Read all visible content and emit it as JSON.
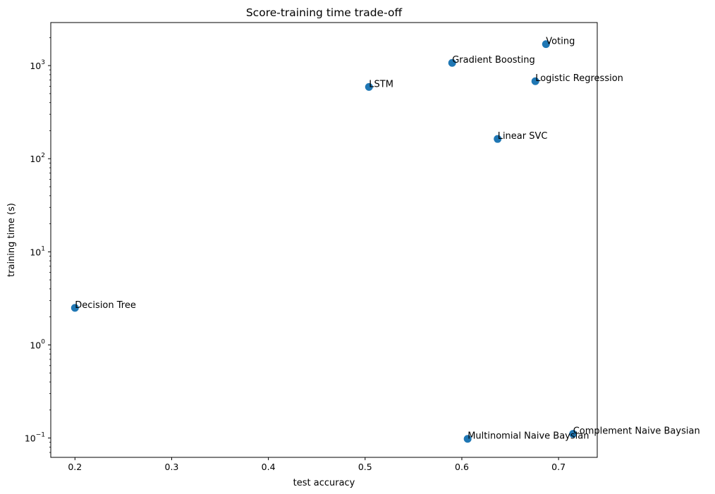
{
  "chart_data": {
    "type": "scatter",
    "title": "Score-training time trade-off",
    "xlabel": "test accuracy",
    "ylabel": "training time (s)",
    "xlim": [
      0.175,
      0.74
    ],
    "ylim": [
      0.062,
      2900
    ],
    "yscale": "log",
    "grid": false,
    "marker_color": "#1f77b4",
    "x_ticks": [
      0.2,
      0.3,
      0.4,
      0.5,
      0.6,
      0.7
    ],
    "x_tick_labels": [
      "0.2",
      "0.3",
      "0.4",
      "0.5",
      "0.6",
      "0.7"
    ],
    "y_ticks": [
      0.1,
      1,
      10,
      100,
      1000
    ],
    "y_tick_labels": [
      {
        "base": "10",
        "exp": "−1"
      },
      {
        "base": "10",
        "exp": "0"
      },
      {
        "base": "10",
        "exp": "1"
      },
      {
        "base": "10",
        "exp": "2"
      },
      {
        "base": "10",
        "exp": "3"
      }
    ],
    "points": [
      {
        "label": "Voting",
        "x": 0.687,
        "y": 1700
      },
      {
        "label": "Gradient Boosting",
        "x": 0.59,
        "y": 1070
      },
      {
        "label": "Logistic Regression",
        "x": 0.676,
        "y": 680
      },
      {
        "label": "LSTM",
        "x": 0.504,
        "y": 590
      },
      {
        "label": "Linear SVC",
        "x": 0.637,
        "y": 163
      },
      {
        "label": "Decision Tree",
        "x": 0.2,
        "y": 2.5
      },
      {
        "label": "Complement Naive Baysian",
        "x": 0.715,
        "y": 0.111
      },
      {
        "label": "Multinomial Naive Baysian",
        "x": 0.606,
        "y": 0.098
      }
    ]
  }
}
